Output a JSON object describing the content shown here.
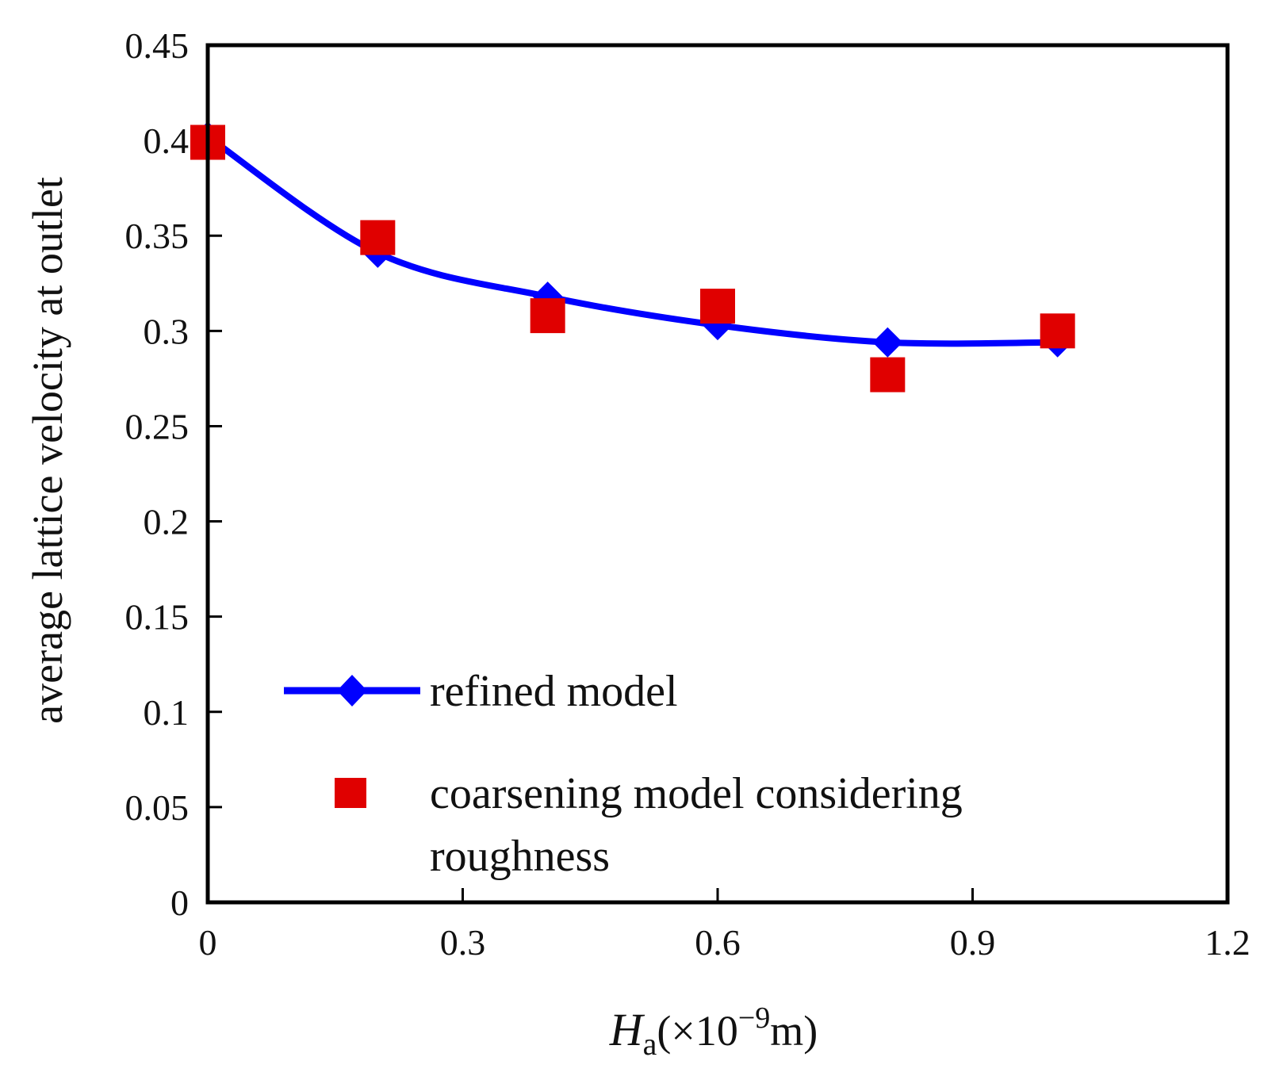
{
  "chart_data": {
    "type": "line",
    "title": "",
    "xlabel": {
      "var": "H",
      "sub": "a",
      "unit_pre": "(×10",
      "exp": "−9",
      "unit_post": "m)"
    },
    "ylabel": "average lattice velocity at outlet",
    "xlim": [
      0,
      1.2
    ],
    "ylim": [
      0,
      0.45
    ],
    "xticks": [
      0,
      0.3,
      0.6,
      0.9,
      1.2
    ],
    "xtick_labels": [
      "0",
      "0.3",
      "0.6",
      "0.9",
      "1.2"
    ],
    "yticks": [
      0,
      0.05,
      0.1,
      0.15,
      0.2,
      0.25,
      0.3,
      0.35,
      0.4,
      0.45
    ],
    "ytick_labels": [
      "0",
      "0.05",
      "0.1",
      "0.15",
      "0.2",
      "0.25",
      "0.3",
      "0.35",
      "0.4",
      "0.45"
    ],
    "grid": false,
    "legend_position": "bottom-left",
    "series": [
      {
        "name": "refined model",
        "style": "line-diamond",
        "color": "#0000ff",
        "x": [
          0,
          0.2,
          0.4,
          0.6,
          0.8,
          1.0
        ],
        "values": [
          0.402,
          0.341,
          0.318,
          0.303,
          0.294,
          0.294
        ]
      },
      {
        "name": "coarsening model considering roughness",
        "legend_lines": [
          "coarsening model considering",
          "roughness"
        ],
        "style": "square-marker",
        "color": "#e00000",
        "x": [
          0,
          0.2,
          0.4,
          0.6,
          0.8,
          1.0
        ],
        "values": [
          0.399,
          0.349,
          0.308,
          0.313,
          0.277,
          0.3
        ]
      }
    ]
  }
}
